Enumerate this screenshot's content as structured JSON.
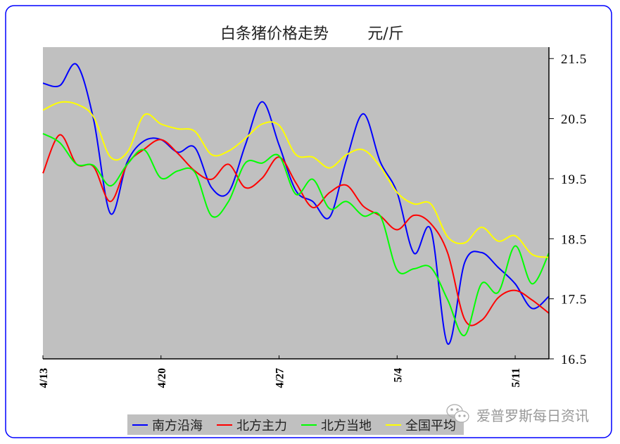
{
  "chart_data": {
    "type": "line",
    "title": "白条猪价格走势",
    "unit": "元/斤",
    "xlabel": "",
    "ylabel": "",
    "x": [
      "4/13",
      "4/14",
      "4/15",
      "4/16",
      "4/17",
      "4/18",
      "4/19",
      "4/20",
      "4/21",
      "4/22",
      "4/23",
      "4/24",
      "4/25",
      "4/26",
      "4/27",
      "4/28",
      "4/29",
      "4/30",
      "5/1",
      "5/2",
      "5/3",
      "5/4",
      "5/5",
      "5/6",
      "5/7",
      "5/8",
      "5/9",
      "5/10",
      "5/11",
      "5/12",
      "5/13"
    ],
    "x_tick_labels": [
      "4/13",
      "4/20",
      "4/27",
      "5/4",
      "5/11"
    ],
    "x_tick_index": [
      0,
      7,
      14,
      21,
      28
    ],
    "y_tick_labels": [
      "21.5",
      "20.5",
      "19.5",
      "18.5",
      "17.5",
      "16.5"
    ],
    "y_ticks": [
      21.5,
      20.5,
      19.5,
      18.5,
      17.5,
      16.5
    ],
    "ylim": [
      16.5,
      21.69
    ],
    "y_axis_side": "right",
    "grid": false,
    "background": "#c0c0c0",
    "legend_position": "bottom",
    "series": [
      {
        "name": "南方沿海",
        "color": "#0000ff",
        "values": [
          21.09,
          21.05,
          21.4,
          20.49,
          18.92,
          19.78,
          20.13,
          20.15,
          19.94,
          20.02,
          19.35,
          19.27,
          20.06,
          20.78,
          20.06,
          19.3,
          19.12,
          18.86,
          19.82,
          20.58,
          19.78,
          19.27,
          18.26,
          18.65,
          16.75,
          18.1,
          18.27,
          18.02,
          17.75,
          17.34,
          17.54
        ]
      },
      {
        "name": "北方主力",
        "color": "#ff0000",
        "values": [
          19.59,
          20.23,
          19.74,
          19.7,
          19.12,
          19.74,
          19.99,
          20.15,
          19.92,
          19.63,
          19.49,
          19.74,
          19.35,
          19.51,
          19.86,
          19.43,
          19.02,
          19.27,
          19.39,
          19.04,
          18.88,
          18.65,
          18.89,
          18.75,
          18.26,
          17.16,
          17.14,
          17.52,
          17.64,
          17.48,
          17.26
        ]
      },
      {
        "name": "北方当地",
        "color": "#00ff00",
        "values": [
          20.25,
          20.1,
          19.74,
          19.72,
          19.38,
          19.74,
          19.98,
          19.51,
          19.63,
          19.61,
          18.88,
          19.12,
          19.76,
          19.76,
          19.88,
          19.24,
          19.49,
          19.0,
          19.12,
          18.88,
          18.88,
          17.98,
          18.0,
          18.02,
          17.48,
          16.89,
          17.75,
          17.61,
          18.38,
          17.75,
          18.26
        ]
      },
      {
        "name": "全国平均",
        "color": "#ffff00",
        "values": [
          20.64,
          20.77,
          20.74,
          20.53,
          19.86,
          19.94,
          20.56,
          20.41,
          20.33,
          20.29,
          19.9,
          19.96,
          20.17,
          20.41,
          20.39,
          19.9,
          19.86,
          19.68,
          19.9,
          19.98,
          19.7,
          19.27,
          19.08,
          19.08,
          18.53,
          18.43,
          18.69,
          18.46,
          18.55,
          18.24,
          18.19
        ]
      }
    ]
  },
  "watermark": {
    "text": "爱普罗斯每日资讯",
    "icon": "wechat-icon"
  },
  "colors": {
    "frame": "#0000ff",
    "plot_bg": "#c0c0c0"
  }
}
